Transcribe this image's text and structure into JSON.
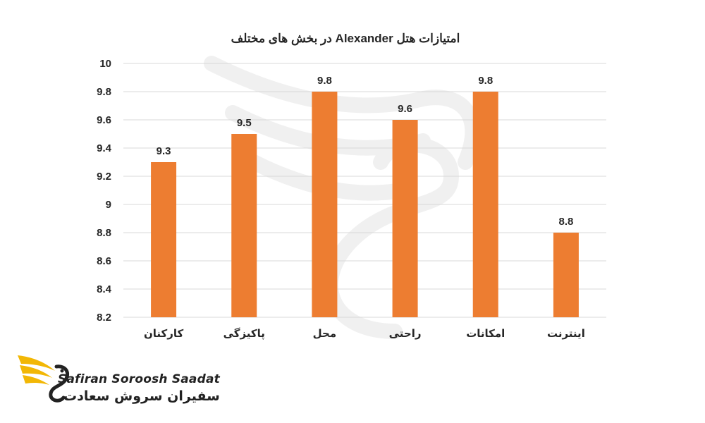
{
  "chart_data": {
    "type": "bar",
    "title": "امتیازات هتل Alexander در بخش های مختلف",
    "categories": [
      "کارکنان",
      "پاکیزگی",
      "محل",
      "راحتی",
      "امکانات",
      "اینترنت"
    ],
    "values": [
      9.3,
      9.5,
      9.8,
      9.6,
      9.8,
      8.8
    ],
    "data_labels": [
      "9.3",
      "9.5",
      "9.8",
      "9.6",
      "9.8",
      "8.8"
    ],
    "y_ticks": [
      8.2,
      8.4,
      8.6,
      8.8,
      9,
      9.2,
      9.4,
      9.6,
      9.8,
      10
    ],
    "y_tick_labels": [
      "8.2",
      "8.4",
      "8.6",
      "8.8",
      "9",
      "9.2",
      "9.4",
      "9.6",
      "9.8",
      "10"
    ],
    "ylim": [
      8.2,
      10
    ],
    "grid": true,
    "legend": "none",
    "bar_color": "#ED7D31",
    "grid_color": "#D9D9D9"
  },
  "brand": {
    "name_en": "Safiran Soroosh Saadat",
    "name_fa": "سفیران سروش سعادت",
    "icon": "eagle-logo-icon",
    "accent_color": "#F2B705"
  }
}
